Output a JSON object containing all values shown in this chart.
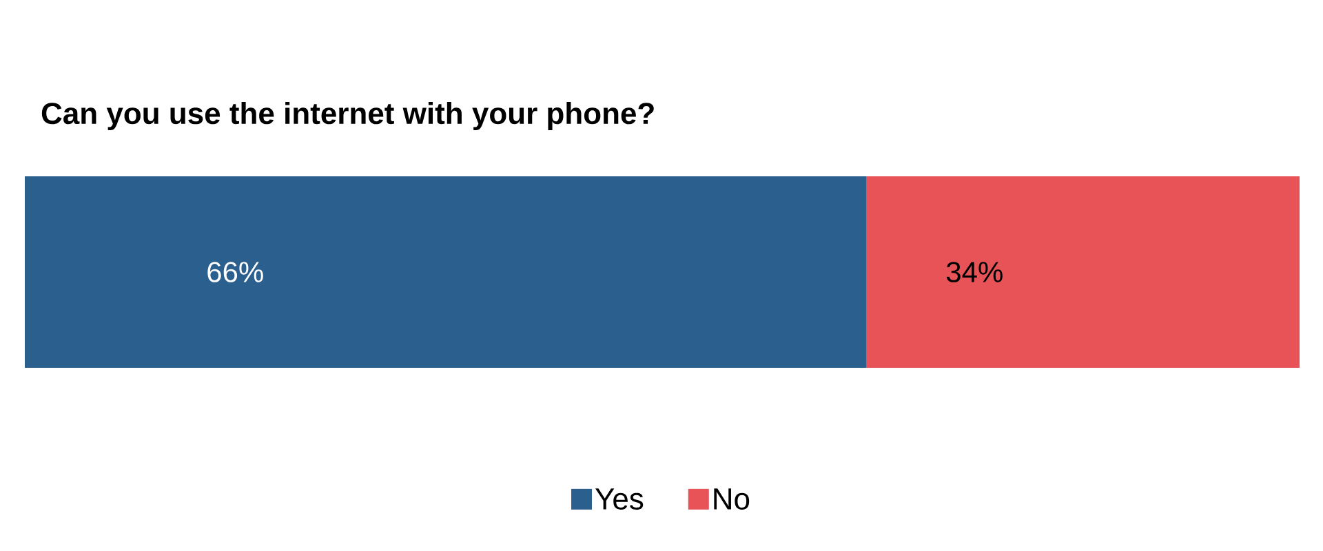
{
  "chart_data": {
    "type": "bar",
    "orientation": "horizontal",
    "stacked": true,
    "title": "Can you use the internet with your phone?",
    "categories": [
      null
    ],
    "tick_labels": false,
    "legend": "bottom",
    "series": [
      {
        "name": "Yes",
        "color": "#2b5f8e",
        "values": [
          66
        ],
        "value_labels": [
          "66%"
        ]
      },
      {
        "name": "No",
        "color": "#e85357",
        "values": [
          34
        ],
        "value_labels": [
          "34%"
        ]
      }
    ]
  }
}
